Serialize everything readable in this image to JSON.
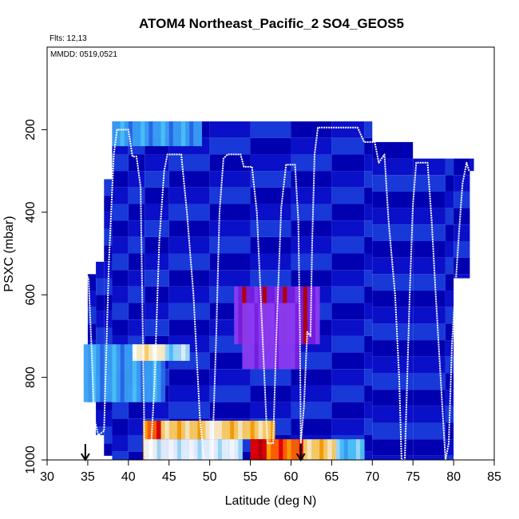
{
  "chart_data": {
    "type": "heatmap",
    "title": "ATOM4 Northeast_Pacific_2 SO4_GEOS5",
    "flights_text": "Flts: 12,13",
    "dates_text": "MMDD: 0519,0521",
    "xlabel": "Latitude (deg N)",
    "ylabel": "PSXC (mbar)",
    "xlim": [
      30,
      85
    ],
    "ylim": [
      1000,
      0
    ],
    "x_ticks": [
      "30",
      "35",
      "40",
      "45",
      "50",
      "55",
      "60",
      "65",
      "70",
      "75",
      "80",
      "85"
    ],
    "y_ticks": [
      "200",
      "400",
      "600",
      "800",
      "1000"
    ],
    "arrows_at_lat": [
      34.7,
      61.2
    ],
    "palette": [
      "#0000b0",
      "#0a10c8",
      "#1838d8",
      "#2a6ae8",
      "#3aa0f4",
      "#4cc4f8",
      "#a0dcf8",
      "#e8f4ff",
      "#ffffff",
      "#ffeec0",
      "#ffd060",
      "#ffa000",
      "#ff6000",
      "#e00000",
      "#b80000",
      "#7a1ee0",
      "#8a3cf0"
    ],
    "columns": [
      {
        "lat": 35.0,
        "p_top": 550,
        "p_bot": 860
      },
      {
        "lat": 36.0,
        "p_top": 520,
        "p_bot": 940
      },
      {
        "lat": 37.0,
        "p_top": 320,
        "p_bot": 990
      },
      {
        "lat": 38.0,
        "p_top": 180,
        "p_bot": 1000
      },
      {
        "lat": 40.0,
        "p_top": 180,
        "p_bot": 1000
      },
      {
        "lat": 42.0,
        "p_top": 180,
        "p_bot": 1000
      },
      {
        "lat": 45.0,
        "p_top": 180,
        "p_bot": 1000
      },
      {
        "lat": 50.0,
        "p_top": 180,
        "p_bot": 1000
      },
      {
        "lat": 55.0,
        "p_top": 180,
        "p_bot": 1000
      },
      {
        "lat": 60.0,
        "p_top": 180,
        "p_bot": 1000
      },
      {
        "lat": 65.0,
        "p_top": 180,
        "p_bot": 1000
      },
      {
        "lat": 69.0,
        "p_top": 180,
        "p_bot": 1000
      },
      {
        "lat": 70.0,
        "p_top": 230,
        "p_bot": 1000
      },
      {
        "lat": 75.0,
        "p_top": 270,
        "p_bot": 1000
      },
      {
        "lat": 79.0,
        "p_top": 270,
        "p_bot": 1000
      },
      {
        "lat": 80.0,
        "p_top": 270,
        "p_bot": 560
      },
      {
        "lat": 82.0,
        "p_top": 270,
        "p_bot": 300
      }
    ],
    "high_bands": [
      {
        "lat0": 41.8,
        "lat1": 44.0,
        "p0": 905,
        "p1": 1000,
        "level": 12
      },
      {
        "lat0": 44.0,
        "lat1": 49.0,
        "p0": 905,
        "p1": 950,
        "level": 10
      },
      {
        "lat0": 49.0,
        "lat1": 52.0,
        "p0": 905,
        "p1": 950,
        "level": 9
      },
      {
        "lat0": 52.0,
        "lat1": 58.0,
        "p0": 905,
        "p1": 950,
        "level": 10
      },
      {
        "lat0": 55.0,
        "lat1": 59.5,
        "p0": 950,
        "p1": 1000,
        "level": 13
      },
      {
        "lat0": 57.0,
        "lat1": 61.5,
        "p0": 950,
        "p1": 1000,
        "level": 12
      },
      {
        "lat0": 61.5,
        "lat1": 65.5,
        "p0": 950,
        "p1": 1000,
        "level": 10
      },
      {
        "lat0": 65.5,
        "lat1": 69.0,
        "p0": 950,
        "p1": 1000,
        "level": 5
      },
      {
        "lat0": 42.0,
        "lat1": 54.0,
        "p0": 950,
        "p1": 1000,
        "level": 7
      },
      {
        "lat0": 34.5,
        "lat1": 44.5,
        "p0": 720,
        "p1": 860,
        "level": 4
      },
      {
        "lat0": 40.5,
        "lat1": 44.5,
        "p0": 720,
        "p1": 760,
        "level": 9
      },
      {
        "lat0": 44.5,
        "lat1": 47.5,
        "p0": 720,
        "p1": 760,
        "level": 6
      },
      {
        "lat0": 53.0,
        "lat1": 63.5,
        "p0": 580,
        "p1": 720,
        "level": 15
      },
      {
        "lat0": 54.0,
        "lat1": 61.0,
        "p0": 620,
        "p1": 780,
        "level": 16
      },
      {
        "lat0": 38.0,
        "lat1": 49.0,
        "p0": 180,
        "p1": 240,
        "level": 4
      }
    ],
    "flight_track": [
      [
        34.8,
        550
      ],
      [
        35.1,
        560
      ],
      [
        35.4,
        700
      ],
      [
        35.8,
        900
      ],
      [
        36.3,
        940
      ],
      [
        37.0,
        930
      ],
      [
        37.6,
        520
      ],
      [
        38.2,
        260
      ],
      [
        38.6,
        200
      ],
      [
        40.0,
        200
      ],
      [
        40.5,
        265
      ],
      [
        41.0,
        265
      ],
      [
        41.5,
        340
      ],
      [
        42.0,
        1000
      ],
      [
        42.7,
        1000
      ],
      [
        43.2,
        820
      ],
      [
        43.8,
        470
      ],
      [
        44.4,
        300
      ],
      [
        44.8,
        260
      ],
      [
        46.5,
        260
      ],
      [
        47.2,
        400
      ],
      [
        48.0,
        600
      ],
      [
        48.8,
        900
      ],
      [
        49.3,
        1000
      ],
      [
        50.3,
        1000
      ],
      [
        50.8,
        700
      ],
      [
        51.2,
        400
      ],
      [
        51.7,
        270
      ],
      [
        52.2,
        260
      ],
      [
        53.8,
        260
      ],
      [
        54.2,
        290
      ],
      [
        55.2,
        290
      ],
      [
        55.8,
        400
      ],
      [
        56.5,
        700
      ],
      [
        57.1,
        960
      ],
      [
        57.8,
        960
      ],
      [
        58.2,
        700
      ],
      [
        58.8,
        390
      ],
      [
        59.4,
        285
      ],
      [
        60.5,
        285
      ],
      [
        60.9,
        420
      ],
      [
        61.1,
        700
      ],
      [
        61.2,
        960
      ],
      [
        61.6,
        870
      ],
      [
        62.0,
        690
      ],
      [
        62.4,
        700
      ],
      [
        62.6,
        480
      ],
      [
        62.9,
        260
      ],
      [
        63.3,
        195
      ],
      [
        65.5,
        195
      ],
      [
        68.2,
        195
      ],
      [
        69.0,
        230
      ],
      [
        70.3,
        230
      ],
      [
        70.8,
        280
      ],
      [
        71.5,
        260
      ],
      [
        72.0,
        420
      ],
      [
        72.8,
        600
      ],
      [
        73.3,
        800
      ],
      [
        73.6,
        1000
      ],
      [
        74.0,
        1000
      ],
      [
        74.6,
        600
      ],
      [
        75.0,
        380
      ],
      [
        75.4,
        280
      ],
      [
        76.8,
        280
      ],
      [
        77.3,
        420
      ],
      [
        77.8,
        600
      ],
      [
        78.4,
        800
      ],
      [
        79.0,
        1000
      ],
      [
        79.4,
        960
      ],
      [
        79.8,
        720
      ],
      [
        80.3,
        560
      ],
      [
        80.7,
        440
      ],
      [
        81.1,
        330
      ],
      [
        81.6,
        280
      ],
      [
        81.9,
        300
      ]
    ]
  }
}
